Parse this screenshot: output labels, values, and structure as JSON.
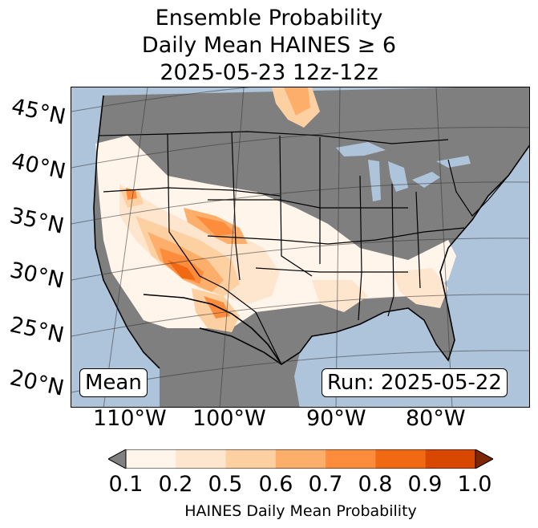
{
  "title": {
    "line1": "Ensemble Probability",
    "line2": "Daily Mean HAINES ≥ 6",
    "line3": "2025-05-23 12z-12z"
  },
  "map": {
    "latitude_labels": [
      "45°N",
      "40°N",
      "35°N",
      "30°N",
      "25°N",
      "20°N"
    ],
    "longitude_labels": [
      "110°W",
      "100°W",
      "90°W",
      "80°W"
    ],
    "stat_label": "Mean",
    "run_label": "Run: 2025-05-22",
    "colors": {
      "ocean": "#aec4db",
      "no_data": "#7f7f7f",
      "land_low": "#fff5eb"
    }
  },
  "colorbar": {
    "ticks": [
      "0.1",
      "0.2",
      "0.5",
      "0.6",
      "0.7",
      "0.8",
      "0.9",
      "1.0"
    ],
    "label": "HAINES Daily Mean Probability",
    "under_color": "#808080",
    "over_color": "#7f2704",
    "colors": [
      "#fff5eb",
      "#fee6ce",
      "#fdd0a2",
      "#fdae6b",
      "#fd8d3c",
      "#f16913",
      "#d94801"
    ]
  }
}
